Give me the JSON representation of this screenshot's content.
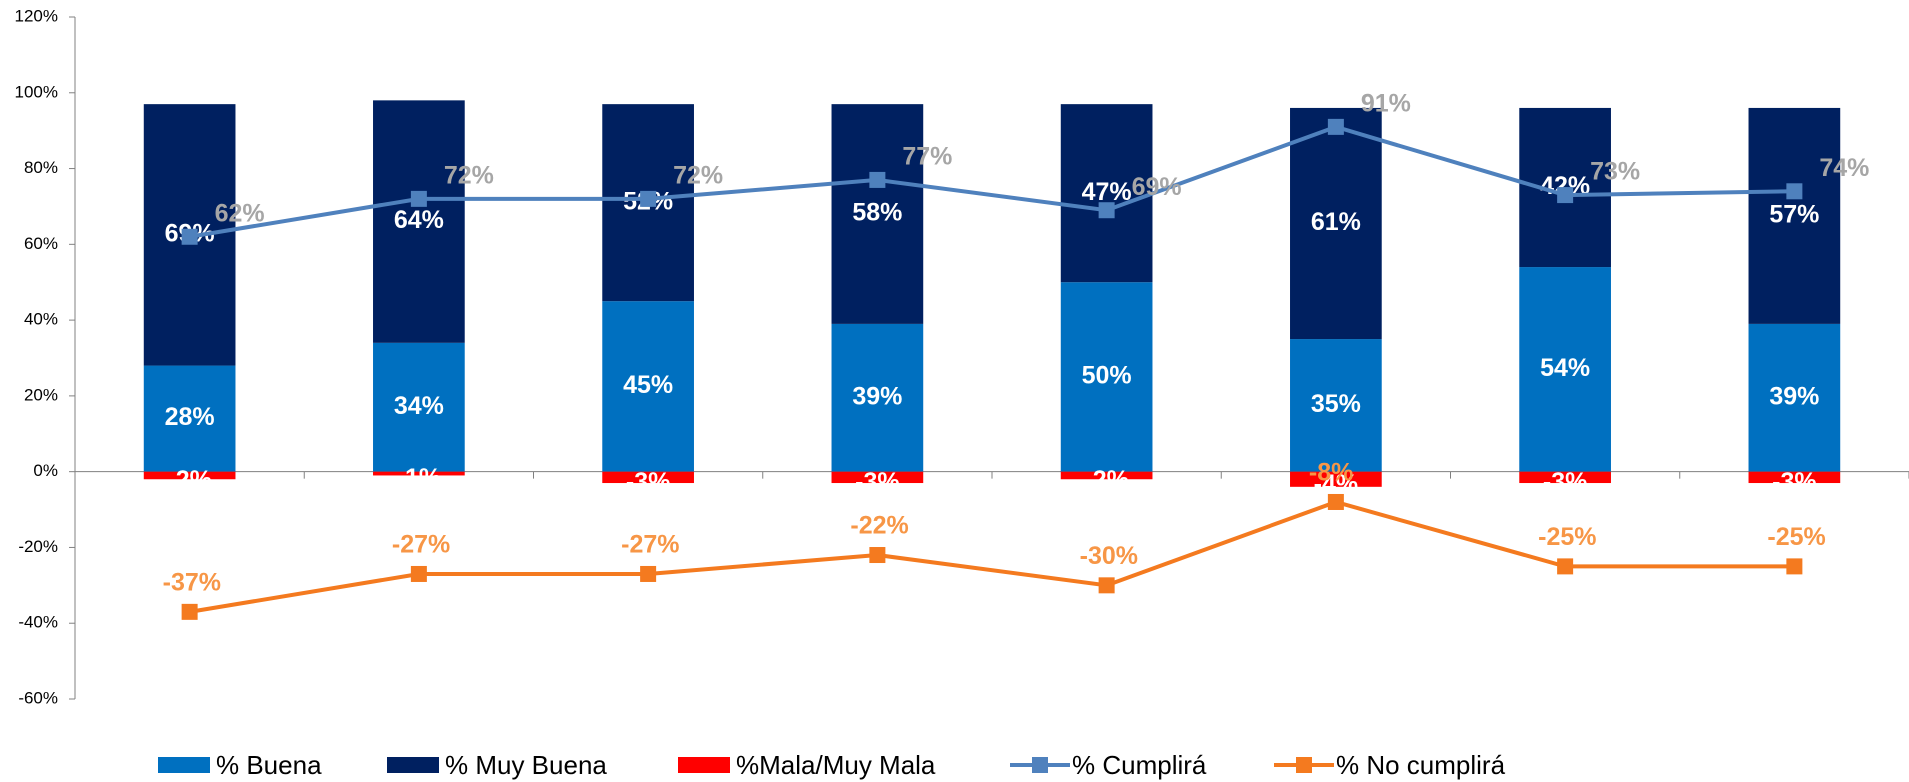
{
  "chart_data": {
    "type": "bar",
    "categories": [
      null,
      null,
      null,
      null,
      null,
      null,
      null,
      null
    ],
    "stacked": true,
    "series": [
      {
        "name": "% Buena",
        "type": "bar",
        "color": "#0070c0",
        "values": [
          28,
          34,
          45,
          39,
          50,
          35,
          54,
          39
        ],
        "value_labels": [
          "28%",
          "34%",
          "45%",
          "39%",
          "50%",
          "35%",
          "54%",
          "39%"
        ],
        "label_color": "#ffffff"
      },
      {
        "name": "% Muy Buena",
        "type": "bar",
        "color": "#002060",
        "values": [
          69,
          64,
          52,
          58,
          47,
          61,
          42,
          57
        ],
        "value_labels": [
          "69%",
          "64%",
          "52%",
          "58%",
          "47%",
          "61%",
          "42%",
          "57%"
        ],
        "label_color": "#ffffff"
      },
      {
        "name": "%Mala/Muy Mala",
        "type": "bar",
        "color": "#ff0000",
        "values": [
          -2,
          -1,
          -3,
          -3,
          -2,
          -4,
          -3,
          -3
        ],
        "value_labels": [
          "-2%",
          "-1%",
          "-3%",
          "-3%",
          "-2%",
          "-4%",
          "-3%",
          "-3%"
        ],
        "label_color": "#ffffff"
      },
      {
        "name": "% Cumplirá",
        "type": "line",
        "color": "#4f81bd",
        "values": [
          62,
          72,
          72,
          77,
          69,
          91,
          73,
          74
        ],
        "value_labels": [
          "62%",
          "72%",
          "72%",
          "77%",
          "69%",
          "91%",
          "73%",
          "74%"
        ],
        "label_color": "#a6a6a6"
      },
      {
        "name": "% No cumplirá",
        "type": "line",
        "color": "#f47a1f",
        "values": [
          -37,
          -27,
          -27,
          -22,
          -30,
          -8,
          -25,
          -25
        ],
        "value_labels": [
          "-37%",
          "-27%",
          "-27%",
          "-22%",
          "-30%",
          "-8%",
          "-25%",
          "-25%"
        ],
        "label_color": "#f79646"
      }
    ],
    "ylim": [
      -60,
      120
    ],
    "yticks": [
      {
        "value": -60,
        "label": "-60%"
      },
      {
        "value": -40,
        "label": "-40%"
      },
      {
        "value": -20,
        "label": "-20%"
      },
      {
        "value": 0,
        "label": "0%"
      },
      {
        "value": 20,
        "label": "20%"
      },
      {
        "value": 40,
        "label": "40%"
      },
      {
        "value": 60,
        "label": "60%"
      },
      {
        "value": 80,
        "label": "80%"
      },
      {
        "value": 100,
        "label": "100%"
      },
      {
        "value": 120,
        "label": "120%"
      }
    ],
    "legend": "bottom"
  }
}
